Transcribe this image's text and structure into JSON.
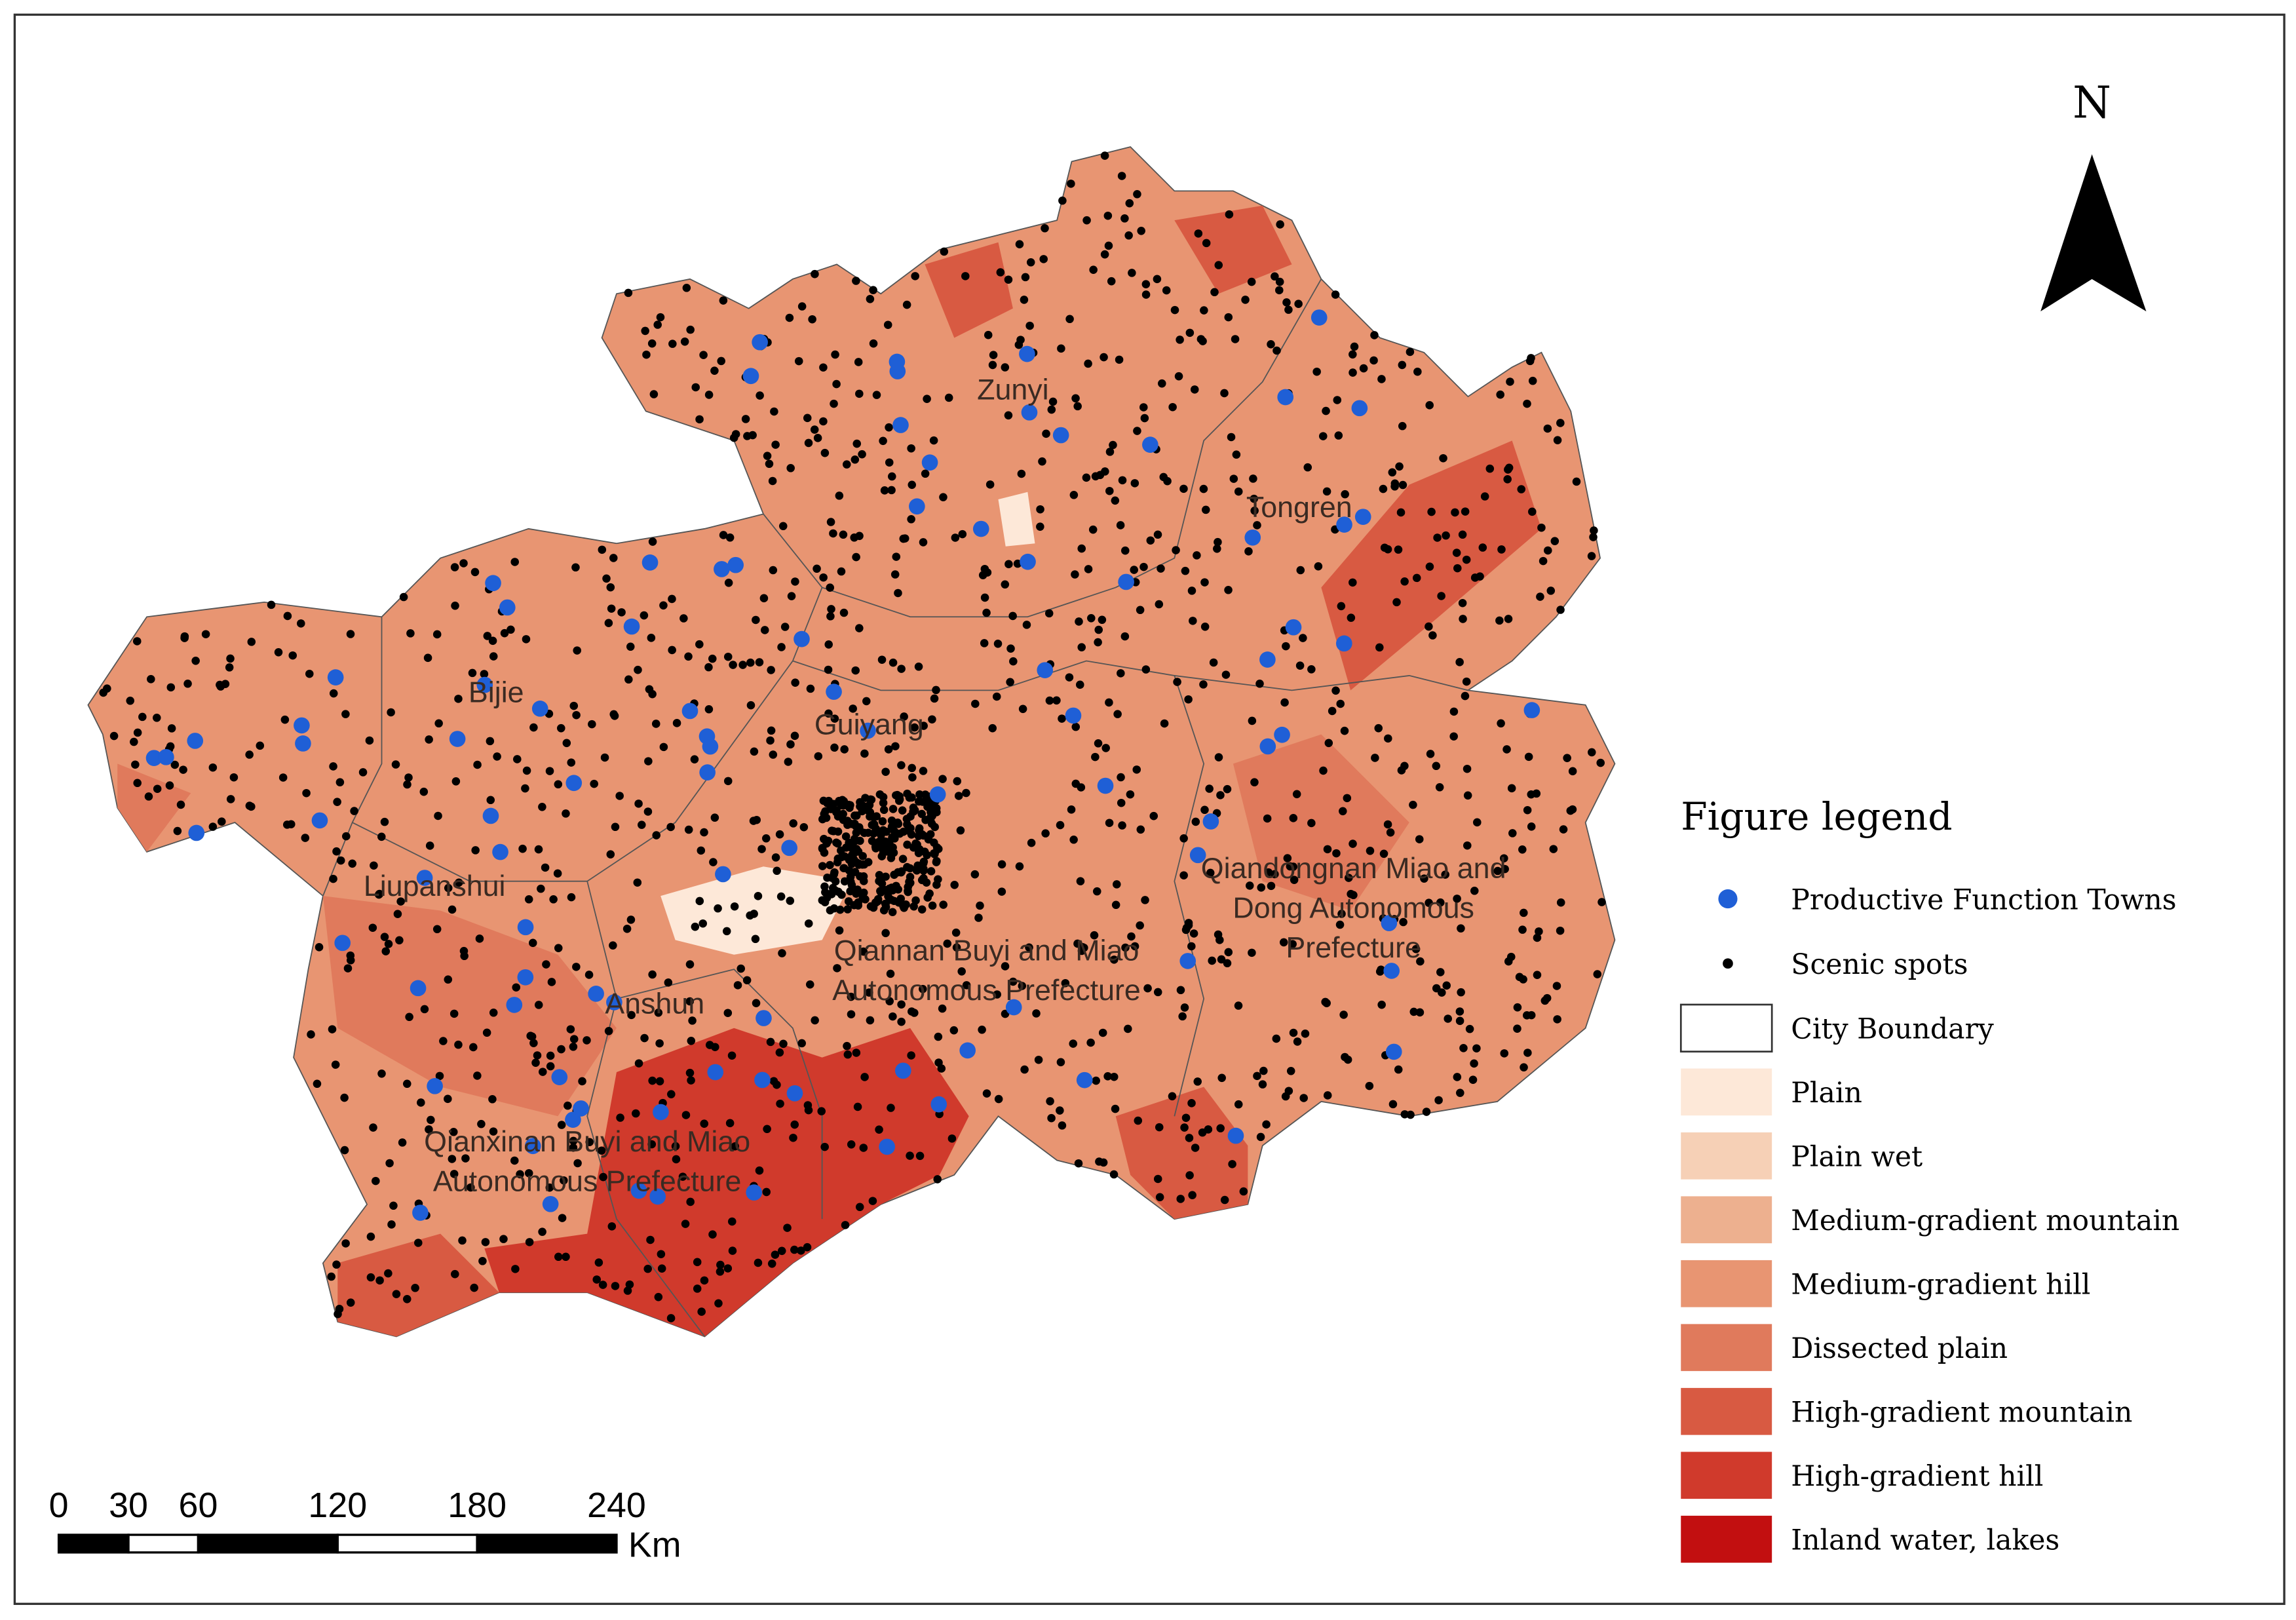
{
  "north": "N",
  "legend": {
    "title": "Figure legend",
    "points": [
      {
        "label": "Productive Function Towns",
        "color": "#1f5fd6"
      },
      {
        "label": "Scenic spots",
        "color": "#000000"
      }
    ],
    "boundary": {
      "label": "City Boundary"
    },
    "classes": [
      {
        "label": "Plain",
        "color": "#fde8d8"
      },
      {
        "label": "Plain wet",
        "color": "#f6d0b6"
      },
      {
        "label": "Medium-gradient mountain",
        "color": "#edb08f"
      },
      {
        "label": "Medium-gradient hill",
        "color": "#e89572"
      },
      {
        "label": "Dissected plain",
        "color": "#e07a5c"
      },
      {
        "label": "High-gradient mountain",
        "color": "#d85a42"
      },
      {
        "label": "High-gradient hill",
        "color": "#d03a2c"
      },
      {
        "label": "Inland water, lakes",
        "color": "#c20f10"
      }
    ]
  },
  "cities": [
    {
      "lines": [
        "Zunyi"
      ]
    },
    {
      "lines": [
        "Tongren"
      ]
    },
    {
      "lines": [
        "Bijie"
      ]
    },
    {
      "lines": [
        "Guiyang"
      ]
    },
    {
      "lines": [
        "Liupanshui"
      ]
    },
    {
      "lines": [
        "Anshun"
      ]
    },
    {
      "lines": [
        "Qiandongnan Miao and",
        "Dong Autonomous",
        "Prefecture"
      ]
    },
    {
      "lines": [
        "Qiannan Buyi and Miao",
        "Autonomous Prefecture"
      ]
    },
    {
      "lines": [
        "Qianxinan Buyi and Miao",
        "Autonomous Prefecture"
      ]
    }
  ],
  "scale": {
    "ticks": [
      0,
      30,
      60,
      120,
      180,
      240
    ],
    "unit": "Km"
  }
}
